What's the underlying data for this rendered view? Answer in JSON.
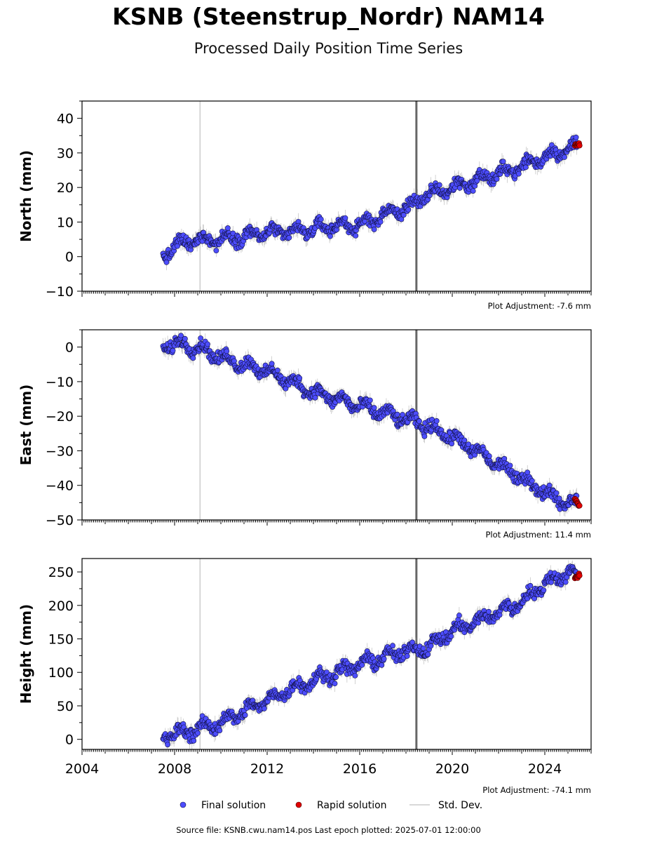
{
  "title": "KSNB (Steenstrup_Nordr) NAM14",
  "subtitle": "Processed Daily Position Time Series",
  "source": "Source file: KSNB.cwu.nam14.pos  Last epoch plotted: 2025-07-01 12:00:00",
  "legend": {
    "final": "Final solution",
    "rapid": "Rapid solution",
    "std": "Std. Dev."
  },
  "colors": {
    "final": "#4d4dff",
    "rapid": "#e00000",
    "std": "#cccccc",
    "event_light": "#cccccc",
    "event_dark": "#666666"
  },
  "chart_data": [
    {
      "type": "scatter",
      "ylabel": "North (mm)",
      "ylim": [
        -10,
        45
      ],
      "yticks": [
        "−10",
        "0",
        "10",
        "20",
        "30",
        "40"
      ],
      "adjustment": "Plot Adjustment: -7.6 mm",
      "x": [
        2007.5,
        2008.0,
        2009.0,
        2010.0,
        2011.0,
        2012.0,
        2013.0,
        2014.0,
        2015.0,
        2016.0,
        2017.0,
        2018.0,
        2019.0,
        2020.0,
        2021.0,
        2022.0,
        2023.0,
        2024.0,
        2025.0,
        2025.4
      ],
      "values": [
        0,
        3,
        5,
        5,
        6,
        7,
        7,
        8,
        9,
        9,
        12,
        14,
        18,
        20,
        22,
        24,
        26,
        29,
        31,
        32
      ],
      "rapid": {
        "x": [
          2025.3,
          2025.5
        ],
        "values": [
          32,
          32.5
        ]
      }
    },
    {
      "type": "scatter",
      "ylabel": "East (mm)",
      "ylim": [
        -50,
        5
      ],
      "yticks": [
        "−50",
        "−40",
        "−30",
        "−20",
        "−10",
        "0"
      ],
      "adjustment": "Plot Adjustment: 11.4 mm",
      "x": [
        2007.5,
        2008.0,
        2009.0,
        2010.0,
        2011.0,
        2012.0,
        2013.0,
        2014.0,
        2015.0,
        2016.0,
        2017.0,
        2018.0,
        2019.0,
        2020.0,
        2021.0,
        2022.0,
        2023.0,
        2024.0,
        2025.0,
        2025.4
      ],
      "values": [
        0,
        1,
        0,
        -3,
        -5,
        -7,
        -10,
        -13,
        -15,
        -17,
        -19,
        -21,
        -23,
        -26,
        -30,
        -34,
        -38,
        -42,
        -45,
        -45
      ],
      "rapid": {
        "x": [
          2025.3,
          2025.5
        ],
        "values": [
          -44,
          -46
        ]
      }
    },
    {
      "type": "scatter",
      "ylabel": "Height (mm)",
      "ylim": [
        -15,
        270
      ],
      "yticks": [
        "0",
        "50",
        "100",
        "150",
        "200",
        "250"
      ],
      "adjustment": "Plot Adjustment: -74.1 mm",
      "x": [
        2007.5,
        2008.0,
        2009.0,
        2010.0,
        2011.0,
        2012.0,
        2013.0,
        2014.0,
        2015.0,
        2016.0,
        2017.0,
        2018.0,
        2019.0,
        2020.0,
        2021.0,
        2022.0,
        2023.0,
        2024.0,
        2025.0,
        2025.4
      ],
      "values": [
        5,
        8,
        15,
        25,
        42,
        58,
        75,
        88,
        100,
        112,
        122,
        132,
        138,
        162,
        175,
        190,
        205,
        232,
        250,
        243
      ],
      "rapid": {
        "x": [
          2025.3,
          2025.5
        ],
        "values": [
          240,
          246
        ]
      }
    }
  ],
  "xaxis": {
    "min": 2004,
    "max": 2026,
    "ticks": [
      2004,
      2008,
      2012,
      2016,
      2020,
      2024
    ],
    "tick_labels": [
      "2004",
      "2008",
      "2012",
      "2016",
      "2020",
      "2024"
    ]
  },
  "events": [
    {
      "x": 2009.1,
      "kind": "light"
    },
    {
      "x": 2018.45,
      "kind": "dark"
    }
  ]
}
